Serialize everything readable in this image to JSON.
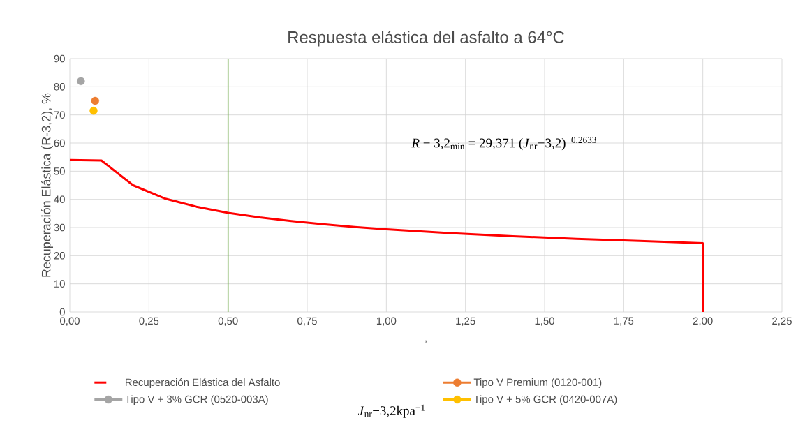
{
  "chart_data": {
    "type": "line",
    "title": "Respuesta elástica del asfalto a 64°C",
    "xlabel": ",",
    "ylabel": "Recuperación Elástica (R-3,2), %",
    "annotations": [
      "*R* − 3,2$_{min}$ = 29,371 (*J*$_{nr}$−3,2)$^{−0,2633}$",
      "*J*$_{nr}$−3,2kpa$^{−1}$"
    ],
    "series": [
      {
        "name": "Recuperación Elástica del Asfalto",
        "marker": "none",
        "color": "#ff0000",
        "x": [
          0,
          0.1,
          0.2,
          0.3,
          0.4,
          0.5,
          0.6,
          0.7,
          0.8,
          0.9,
          1.0,
          1.2,
          1.4,
          1.6,
          1.8,
          2.0,
          2.0
        ],
        "values": [
          54,
          53.8,
          45,
          40.3,
          37.4,
          35.2,
          33.6,
          32.3,
          31.2,
          30.2,
          29.4,
          28.0,
          26.9,
          26.0,
          25.2,
          24.4,
          0
        ]
      },
      {
        "name": "Tipo V Premium (0120-001)",
        "type": "scatter",
        "color": "#ed7d31",
        "x": [
          0.08
        ],
        "values": [
          75
        ]
      },
      {
        "name": "Tipo V + 3% GCR (0520-003A)",
        "type": "scatter",
        "color": "#a5a5a5",
        "x": [
          0.035
        ],
        "values": [
          82
        ]
      },
      {
        "name": "Tipo V + 5% GCR (0420-007A)",
        "type": "scatter",
        "color": "#ffc000",
        "x": [
          0.075
        ],
        "values": [
          71.5
        ]
      }
    ],
    "ref_lines": [
      {
        "axis": "x",
        "value": 0.5,
        "color": "#70ad47"
      }
    ],
    "xlim": [
      0,
      2.25
    ],
    "ylim": [
      0,
      90
    ],
    "xticks": [
      {
        "value": 0,
        "label": "0,00"
      },
      {
        "value": 0.25,
        "label": "0,25"
      },
      {
        "value": 0.5,
        "label": "0,50"
      },
      {
        "value": 0.75,
        "label": "0,75"
      },
      {
        "value": 1.0,
        "label": "1,00"
      },
      {
        "value": 1.25,
        "label": "1,25"
      },
      {
        "value": 1.5,
        "label": "1,50"
      },
      {
        "value": 1.75,
        "label": "1,75"
      },
      {
        "value": 2.0,
        "label": "2,00"
      },
      {
        "value": 2.25,
        "label": "2,25"
      }
    ],
    "yticks": [
      0,
      10,
      20,
      30,
      40,
      50,
      60,
      70,
      80,
      90
    ],
    "grid": true,
    "legend": "bottom",
    "marker": "circle"
  }
}
